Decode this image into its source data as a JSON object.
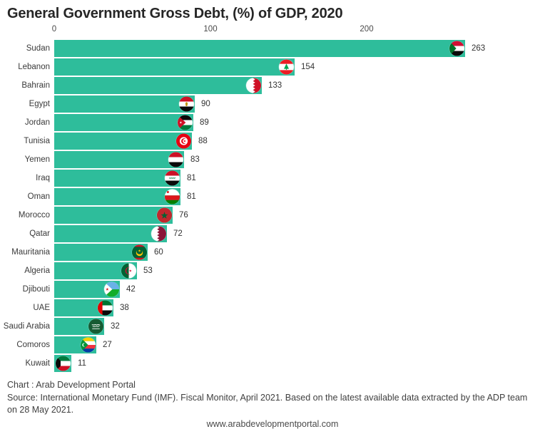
{
  "title": "General Government Gross Debt, (%) of GDP, 2020",
  "chart_data": {
    "type": "bar",
    "orientation": "horizontal",
    "title": "General Government Gross Debt, (%) of GDP, 2020",
    "xlabel": "",
    "ylabel": "",
    "unit": "% of GDP",
    "xlim": [
      0,
      300
    ],
    "xticks": [
      0,
      100,
      200
    ],
    "grid": false,
    "bar_color": "#2EBD9B",
    "categories": [
      "Sudan",
      "Lebanon",
      "Bahrain",
      "Egypt",
      "Jordan",
      "Tunisia",
      "Yemen",
      "Iraq",
      "Oman",
      "Morocco",
      "Qatar",
      "Mauritania",
      "Algeria",
      "Djibouti",
      "UAE",
      "Saudi Arabia",
      "Comoros",
      "Kuwait"
    ],
    "values": [
      263,
      154,
      133,
      90,
      89,
      88,
      83,
      81,
      81,
      76,
      72,
      60,
      53,
      42,
      38,
      32,
      27,
      11
    ],
    "flag_icons": [
      "flag-sudan-icon",
      "flag-lebanon-icon",
      "flag-bahrain-icon",
      "flag-egypt-icon",
      "flag-jordan-icon",
      "flag-tunisia-icon",
      "flag-yemen-icon",
      "flag-iraq-icon",
      "flag-oman-icon",
      "flag-morocco-icon",
      "flag-qatar-icon",
      "flag-mauritania-icon",
      "flag-algeria-icon",
      "flag-djibouti-icon",
      "flag-uae-icon",
      "flag-saudi-arabia-icon",
      "flag-comoros-icon",
      "flag-kuwait-icon"
    ]
  },
  "footer": {
    "chart_credit": "Chart : Arab Development Portal",
    "source": "Source: International Monetary Fund (IMF). Fiscal Monitor, April 2021. Based on the latest available data extracted by the ADP team on 28 May 2021.",
    "website": "www.arabdevelopmentportal.com"
  }
}
